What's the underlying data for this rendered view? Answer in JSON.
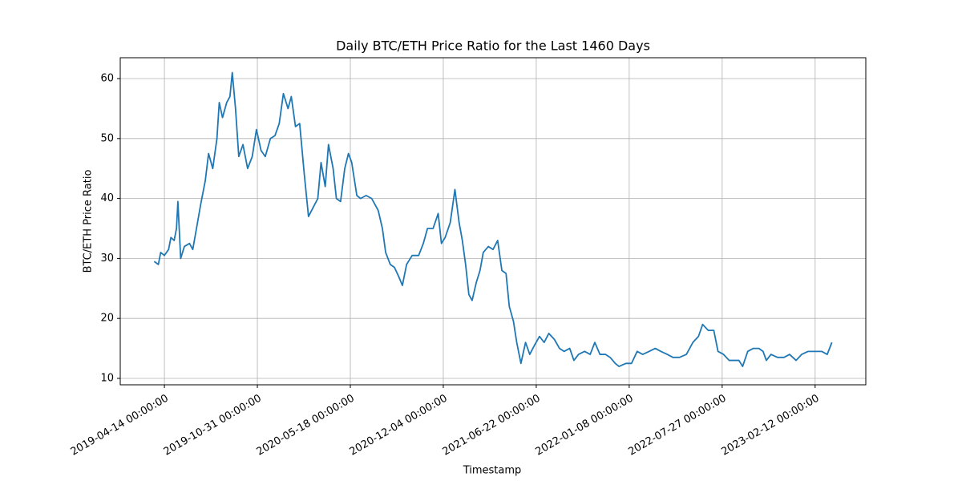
{
  "chart_data": {
    "type": "line",
    "title": "Daily BTC/ETH Price Ratio for the Last 1460 Days",
    "x_label": "Timestamp",
    "y_label": "BTC/ETH Price Ratio",
    "color": "#1f77b4",
    "grid": true,
    "xlim": [
      "2019-01-09",
      "2023-06-01"
    ],
    "ylim": [
      8.93,
      63.48
    ],
    "yticks": [
      10,
      20,
      30,
      40,
      50,
      60
    ],
    "xticks": [
      {
        "value": "2019-04-14",
        "label": "2019-04-14 00:00:00"
      },
      {
        "value": "2019-10-31",
        "label": "2019-10-31 00:00:00"
      },
      {
        "value": "2020-05-18",
        "label": "2020-05-18 00:00:00"
      },
      {
        "value": "2020-12-04",
        "label": "2020-12-04 00:00:00"
      },
      {
        "value": "2021-06-22",
        "label": "2021-06-22 00:00:00"
      },
      {
        "value": "2022-01-08",
        "label": "2022-01-08 00:00:00"
      },
      {
        "value": "2022-07-27",
        "label": "2022-07-27 00:00:00"
      },
      {
        "value": "2023-02-12",
        "label": "2023-02-12 00:00:00"
      }
    ],
    "x": [
      "2019-03-23",
      "2019-04-01",
      "2019-04-06",
      "2019-04-14",
      "2019-04-23",
      "2019-04-28",
      "2019-05-05",
      "2019-05-10",
      "2019-05-13",
      "2019-05-19",
      "2019-05-27",
      "2019-06-07",
      "2019-06-14",
      "2019-06-22",
      "2019-07-01",
      "2019-07-11",
      "2019-07-18",
      "2019-07-27",
      "2019-08-05",
      "2019-08-10",
      "2019-08-17",
      "2019-08-26",
      "2019-09-02",
      "2019-09-07",
      "2019-09-14",
      "2019-09-21",
      "2019-09-30",
      "2019-10-10",
      "2019-10-20",
      "2019-10-29",
      "2019-11-08",
      "2019-11-17",
      "2019-11-28",
      "2019-12-08",
      "2019-12-17",
      "2019-12-26",
      "2020-01-05",
      "2020-01-12",
      "2020-01-21",
      "2020-01-30",
      "2020-02-09",
      "2020-02-18",
      "2020-02-28",
      "2020-03-09",
      "2020-03-16",
      "2020-03-25",
      "2020-04-01",
      "2020-04-11",
      "2020-04-18",
      "2020-04-27",
      "2020-05-06",
      "2020-05-14",
      "2020-05-21",
      "2020-06-01",
      "2020-06-09",
      "2020-06-21",
      "2020-07-03",
      "2020-07-17",
      "2020-07-26",
      "2020-08-02",
      "2020-08-12",
      "2020-08-21",
      "2020-08-30",
      "2020-09-07",
      "2020-09-16",
      "2020-09-28",
      "2020-10-12",
      "2020-10-22",
      "2020-10-31",
      "2020-11-12",
      "2020-11-23",
      "2020-11-30",
      "2020-12-08",
      "2020-12-19",
      "2020-12-29",
      "2021-01-07",
      "2021-01-14",
      "2021-01-21",
      "2021-01-28",
      "2021-02-04",
      "2021-02-13",
      "2021-02-21",
      "2021-02-28",
      "2021-03-11",
      "2021-03-21",
      "2021-03-31",
      "2021-04-09",
      "2021-04-18",
      "2021-04-25",
      "2021-05-04",
      "2021-05-11",
      "2021-05-20",
      "2021-05-30",
      "2021-06-08",
      "2021-06-18",
      "2021-06-29",
      "2021-07-09",
      "2021-07-19",
      "2021-07-31",
      "2021-08-11",
      "2021-08-21",
      "2021-09-02",
      "2021-09-11",
      "2021-09-21",
      "2021-10-04",
      "2021-10-16",
      "2021-10-26",
      "2021-11-06",
      "2021-11-18",
      "2021-11-28",
      "2021-12-09",
      "2021-12-17",
      "2022-01-01",
      "2022-01-13",
      "2022-01-25",
      "2022-02-06",
      "2022-02-20",
      "2022-03-05",
      "2022-03-17",
      "2022-03-31",
      "2022-04-12",
      "2022-04-26",
      "2022-05-11",
      "2022-05-25",
      "2022-06-06",
      "2022-06-15",
      "2022-06-27",
      "2022-07-09",
      "2022-07-18",
      "2022-07-30",
      "2022-08-11",
      "2022-08-21",
      "2022-09-01",
      "2022-09-09",
      "2022-09-20",
      "2022-10-02",
      "2022-10-14",
      "2022-10-23",
      "2022-10-30",
      "2022-11-09",
      "2022-11-23",
      "2022-12-07",
      "2022-12-19",
      "2023-01-02",
      "2023-01-14",
      "2023-01-28",
      "2023-02-12",
      "2023-02-26",
      "2023-03-10",
      "2023-03-20"
    ],
    "values": [
      29.5,
      29,
      31,
      30.5,
      31.5,
      33.5,
      33,
      35,
      39.5,
      30,
      32,
      32.5,
      31.5,
      35,
      39,
      43,
      47.5,
      45,
      50,
      56,
      53.5,
      56,
      57,
      61,
      55,
      47,
      49,
      45,
      47,
      51.5,
      48,
      47,
      50,
      50.5,
      52.5,
      57.5,
      55,
      57,
      52,
      52.5,
      44,
      37,
      38.5,
      40,
      46,
      42,
      49,
      45,
      40,
      39.5,
      45,
      47.5,
      46,
      40.5,
      40,
      40.5,
      40,
      38,
      35,
      31,
      29,
      28.5,
      27,
      25.5,
      29,
      30.5,
      30.5,
      32.5,
      35,
      35,
      37.5,
      32.5,
      33.5,
      36,
      41.5,
      36,
      33,
      29,
      24,
      23,
      26,
      28,
      31,
      32,
      31.5,
      33,
      28,
      27.5,
      22,
      19.5,
      16,
      12.5,
      16,
      14,
      15.5,
      17,
      16,
      17.5,
      16.5,
      15,
      14.5,
      15,
      13,
      14,
      14.5,
      14,
      16,
      14,
      14,
      13.5,
      12.5,
      12,
      12.5,
      12.5,
      14.5,
      14,
      14.5,
      15,
      14.5,
      14,
      13.5,
      13.5,
      14,
      16,
      17,
      19,
      18,
      18,
      14.5,
      14,
      13,
      13,
      13,
      12,
      14.5,
      15,
      15,
      14.5,
      13,
      14,
      13.5,
      13.5,
      14,
      13,
      14,
      14.5,
      14.5,
      14.5,
      14,
      16
    ]
  }
}
